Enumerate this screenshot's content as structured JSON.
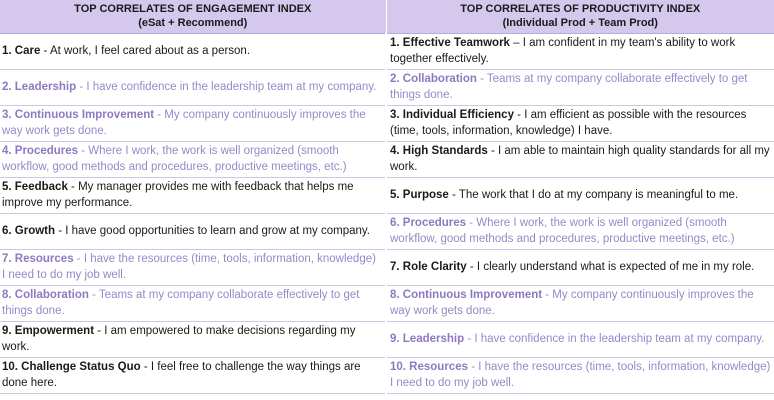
{
  "headers": {
    "engagement_title": "TOP CORRELATES OF ENGAGEMENT INDEX",
    "engagement_subtitle": "(eSat + Recommend)",
    "productivity_title": "TOP CORRELATES OF PRODUCTIVITY INDEX",
    "productivity_subtitle": "(Individual Prod + Team Prod)"
  },
  "rows": [
    {
      "eng": {
        "label": "1. Care",
        "text": " - At work, I feel cared about as a person.",
        "highlight": false
      },
      "prod": {
        "label": "1. Effective Teamwork",
        "text": " – I am confident in my team's ability to work together effectively.",
        "highlight": false
      }
    },
    {
      "eng": {
        "label": "2. Leadership",
        "text": " - I have confidence in the leadership team at my company.",
        "highlight": true
      },
      "prod": {
        "label": "2. Collaboration",
        "text": " - Teams at my company collaborate effectively to get things done.",
        "highlight": true
      }
    },
    {
      "eng": {
        "label": "3. Continuous Improvement",
        "text": " - My company continuously improves the way work gets done.",
        "highlight": true
      },
      "prod": {
        "label": "3. Individual Efficiency",
        "text": " - I am efficient as possible with the resources (time, tools, information, knowledge) I have.",
        "highlight": false
      }
    },
    {
      "eng": {
        "label": "4. Procedures",
        "text": " - Where I work, the work is well organized (smooth workflow, good methods and procedures, productive meetings, etc.)",
        "highlight": true
      },
      "prod": {
        "label": "4. High Standards",
        "text": " - I am able to maintain high quality standards for all my work.",
        "highlight": false
      }
    },
    {
      "eng": {
        "label": "5. Feedback",
        "text": " - My manager provides me with feedback that helps me improve my performance.",
        "highlight": false
      },
      "prod": {
        "label": "5. Purpose",
        "text": " - The work that I do at my company is meaningful to me.",
        "highlight": false
      }
    },
    {
      "eng": {
        "label": "6. Growth",
        "text": " - I have good opportunities to learn and grow at my company.",
        "highlight": false
      },
      "prod": {
        "label": "6. Procedures",
        "text": " - Where I work, the work is well organized (smooth workflow, good methods and procedures, productive meetings, etc.)",
        "highlight": true
      }
    },
    {
      "eng": {
        "label": "7. Resources",
        "text": " - I have the resources (time, tools, information, knowledge) I need to do my job well.",
        "highlight": true
      },
      "prod": {
        "label": "7. Role Clarity",
        "text": " - I clearly understand what is expected of me in my role.",
        "highlight": false
      }
    },
    {
      "eng": {
        "label": "8. Collaboration",
        "text": " - Teams at my company collaborate effectively to get things done.",
        "highlight": true
      },
      "prod": {
        "label": "8. Continuous Improvement",
        "text": " - My company continuously improves the way work gets done.",
        "highlight": true
      }
    },
    {
      "eng": {
        "label": "9. Empowerment",
        "text": " - I am empowered to make decisions regarding my work.",
        "highlight": false
      },
      "prod": {
        "label": "9. Leadership",
        "text": " - I have confidence in the leadership team at my company.",
        "highlight": true
      }
    },
    {
      "eng": {
        "label": "10. Challenge Status Quo",
        "text": " - I feel free to challenge the way things are done here.",
        "highlight": false
      },
      "prod": {
        "label": "10. Resources",
        "text": " - I have the resources (time, tools, information, knowledge) I need to do my job well.",
        "highlight": true
      }
    }
  ],
  "colors": {
    "header_background": "#d4c8ec",
    "highlight_text": "#9a86c8",
    "row_divider": "#cfc6e4"
  }
}
